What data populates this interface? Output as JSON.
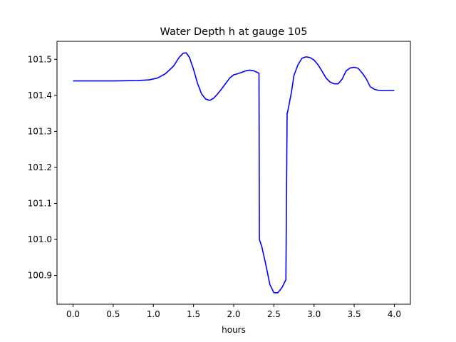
{
  "chart_data": {
    "type": "line",
    "title": "Water Depth h at gauge 105",
    "xlabel": "hours",
    "ylabel": "",
    "xlim": [
      -0.2,
      4.2
    ],
    "ylim": [
      100.82,
      101.55
    ],
    "xticks": [
      0.0,
      0.5,
      1.0,
      1.5,
      2.0,
      2.5,
      3.0,
      3.5,
      4.0
    ],
    "xtick_labels": [
      "0.0",
      "0.5",
      "1.0",
      "1.5",
      "2.0",
      "2.5",
      "3.0",
      "3.5",
      "4.0"
    ],
    "yticks": [
      100.9,
      101.0,
      101.1,
      101.2,
      101.3,
      101.4,
      101.5
    ],
    "ytick_labels": [
      "100.9",
      "101.0",
      "101.1",
      "101.2",
      "101.3",
      "101.4",
      "101.5"
    ],
    "grid": false,
    "series": [
      {
        "color": "#0000ff",
        "x": [
          0.0,
          0.5,
          0.8,
          0.95,
          1.05,
          1.15,
          1.25,
          1.32,
          1.37,
          1.41,
          1.45,
          1.5,
          1.55,
          1.6,
          1.65,
          1.7,
          1.75,
          1.8,
          1.85,
          1.9,
          1.95,
          2.0,
          2.05,
          2.1,
          2.15,
          2.2,
          2.25,
          2.3,
          2.315,
          2.32,
          2.35,
          2.4,
          2.45,
          2.5,
          2.55,
          2.6,
          2.65,
          2.665,
          2.67,
          2.72,
          2.75,
          2.8,
          2.85,
          2.9,
          2.95,
          3.0,
          3.05,
          3.1,
          3.15,
          3.2,
          3.25,
          3.3,
          3.35,
          3.4,
          3.45,
          3.5,
          3.55,
          3.6,
          3.65,
          3.7,
          3.75,
          3.8,
          3.85,
          3.9,
          3.95,
          4.0
        ],
        "y": [
          101.44,
          101.44,
          101.441,
          101.443,
          101.448,
          101.46,
          101.481,
          101.505,
          101.517,
          101.518,
          101.505,
          101.472,
          101.433,
          101.404,
          101.39,
          101.386,
          101.392,
          101.404,
          101.418,
          101.433,
          101.448,
          101.457,
          101.46,
          101.464,
          101.468,
          101.47,
          101.468,
          101.463,
          101.461,
          101.0,
          100.98,
          100.93,
          100.875,
          100.852,
          100.852,
          100.866,
          100.888,
          101.351,
          101.352,
          101.41,
          101.455,
          101.485,
          101.503,
          101.507,
          101.505,
          101.498,
          101.485,
          101.467,
          101.448,
          101.437,
          101.432,
          101.432,
          101.445,
          101.468,
          101.476,
          101.478,
          101.475,
          101.462,
          101.446,
          101.424,
          101.417,
          101.414,
          101.413,
          101.413,
          101.413,
          101.413
        ]
      }
    ]
  }
}
